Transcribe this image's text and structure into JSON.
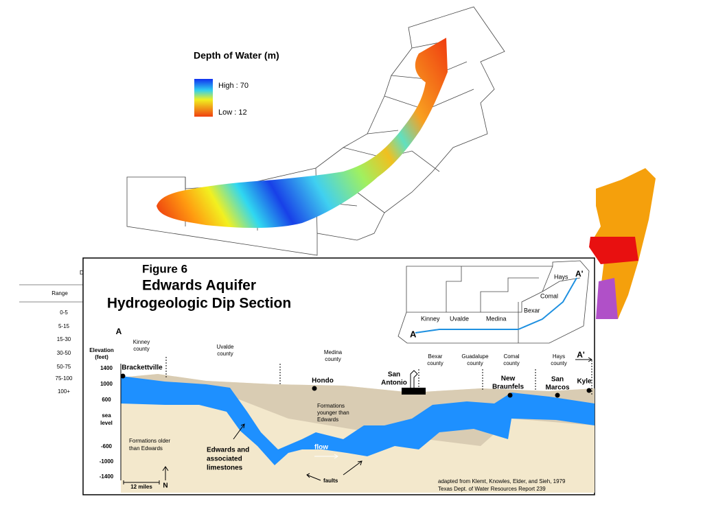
{
  "map": {
    "legend": {
      "title": "Depth of Water (m)",
      "high": "High : 70",
      "low": "Low : 12"
    }
  },
  "table": {
    "header_cut": "D",
    "header": "Range",
    "rows": [
      "0-5",
      "5-15",
      "15-30",
      "30-50",
      "50-75",
      "75-100",
      "100+"
    ]
  },
  "figure": {
    "number": "Figure 6",
    "title": "Edwards Aquifer",
    "subtitle": "Hydrogeologic Dip Section",
    "inset": {
      "counties": [
        "Kinney",
        "Uvalde",
        "Medina",
        "Bexar",
        "Comal",
        "Hays"
      ],
      "start": "A",
      "end": "A'"
    },
    "section": {
      "start": "A",
      "end": "A'",
      "axis_title": [
        "Elevation",
        "(feet)"
      ],
      "axis_labels": [
        "1400",
        "1000",
        "600",
        "sea",
        "level",
        "-600",
        "-1000",
        "-1400"
      ],
      "counties": [
        [
          "Kinney",
          "county"
        ],
        [
          "Uvalde",
          "county"
        ],
        [
          "Medina",
          "county"
        ],
        [
          "Bexar",
          "county"
        ],
        [
          "Guadalupe",
          "county"
        ],
        [
          "Comal",
          "county"
        ],
        [
          "Hays",
          "county"
        ]
      ],
      "towns": [
        "Brackettville",
        "Hondo",
        [
          "San",
          "Antonio"
        ],
        [
          "New",
          "Braunfels"
        ],
        [
          "San",
          "Marcos"
        ],
        "Kyle"
      ],
      "younger": [
        "Formations",
        "younger than",
        "Edwards"
      ],
      "older": [
        "Formations older",
        "than Edwards"
      ],
      "edwards": [
        "Edwards and",
        "associated",
        "limestones"
      ],
      "flow": "flow",
      "faults": "faults",
      "scale": "12 miles",
      "north": "N",
      "credit": [
        "adapted from Klemt, Knowles, Elder, and Sieh, 1979",
        "Texas Dept. of Water Resources Report 239"
      ]
    }
  }
}
